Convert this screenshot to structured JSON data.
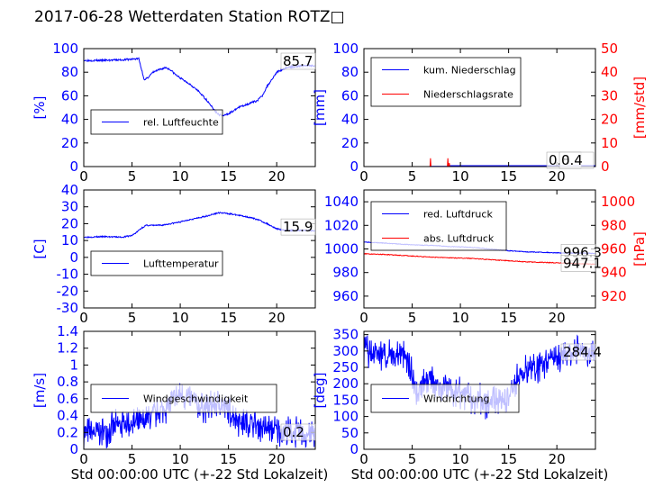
{
  "page": {
    "title": "2017-06-28 Wetterdaten Station ROTZ□"
  },
  "colors": {
    "primary": "#0000ff",
    "secondary": "#ff0000",
    "axis": "#000000",
    "background": "#ffffff"
  },
  "chart_data": [
    {
      "type": "line",
      "id": "humidity",
      "xlabel": "",
      "ylabel": "[%]",
      "ylabel_right": "",
      "xlim": [
        0,
        24
      ],
      "xticks": [
        0,
        5,
        10,
        15,
        20
      ],
      "ylim": [
        0,
        100
      ],
      "yticks": [
        0,
        20,
        40,
        60,
        80,
        100
      ],
      "legend_position": "lower-left",
      "value_labels": [
        "85.7"
      ],
      "series": [
        {
          "name": "rel. Luftfeuchte",
          "color": "#0000ff",
          "axis": "left",
          "noise": 0.8,
          "x": [
            0,
            2,
            4,
            5,
            5.7,
            6.0,
            6.3,
            6.7,
            7.2,
            7.8,
            8.5,
            9.0,
            9.5,
            10.2,
            11,
            12,
            13,
            13.5,
            14,
            14.5,
            15,
            15.5,
            16,
            17,
            18,
            18.5,
            19,
            19.5,
            20,
            21,
            22,
            23,
            24
          ],
          "y": [
            90,
            90,
            90.5,
            91,
            91.5,
            82,
            73,
            76,
            80,
            82,
            84,
            82,
            78,
            74,
            70,
            63,
            54,
            48,
            44,
            43,
            45,
            47,
            50,
            53,
            56,
            60,
            68,
            74,
            80,
            84,
            85,
            85.5,
            85.7
          ]
        }
      ]
    },
    {
      "type": "line",
      "id": "precipitation",
      "xlabel": "",
      "ylabel": "[mm]",
      "ylabel_right": "[mm/std]",
      "xlim": [
        0,
        24
      ],
      "xticks": [
        0,
        5,
        10,
        15,
        20
      ],
      "ylim": [
        0,
        100
      ],
      "yticks": [
        0,
        20,
        40,
        60,
        80,
        100
      ],
      "ylim_right": [
        0,
        50
      ],
      "yticks_right": [
        0,
        10,
        20,
        30,
        40,
        50
      ],
      "legend_position": "upper-left",
      "value_labels": [
        "0.8",
        "0.4"
      ],
      "series": [
        {
          "name": "kum. Niederschlag",
          "color": "#0000ff",
          "axis": "left",
          "x": [
            0,
            6.9,
            7.0,
            8.7,
            8.8,
            24
          ],
          "y": [
            0,
            0,
            0.2,
            0.2,
            0.8,
            0.8
          ]
        },
        {
          "name": "Niederschlagsrate",
          "color": "#ff0000",
          "axis": "right",
          "x": [
            0,
            6.85,
            6.9,
            6.95,
            7.1,
            8.65,
            8.7,
            8.75,
            8.85,
            8.9,
            24
          ],
          "y": [
            0,
            0,
            3.5,
            0,
            0,
            0,
            3.5,
            0,
            1.5,
            0,
            0
          ]
        }
      ]
    },
    {
      "type": "line",
      "id": "temperature",
      "xlabel": "",
      "ylabel": "[C]",
      "ylabel_right": "",
      "xlim": [
        0,
        24
      ],
      "xticks": [
        0,
        5,
        10,
        15,
        20
      ],
      "ylim": [
        -30,
        40
      ],
      "yticks": [
        -30,
        -20,
        -10,
        0,
        10,
        20,
        30,
        40
      ],
      "legend_position": "lower-left",
      "value_labels": [
        "15.9"
      ],
      "series": [
        {
          "name": "Lufttemperatur",
          "color": "#0000ff",
          "axis": "left",
          "noise": 0.4,
          "x": [
            0,
            2,
            4,
            5,
            5.5,
            6,
            6.5,
            8,
            9,
            10,
            11,
            12,
            13,
            14,
            15,
            16,
            17,
            18,
            19,
            20,
            21,
            22,
            24
          ],
          "y": [
            12,
            12.3,
            12,
            13,
            15,
            17.5,
            19,
            19,
            20,
            21,
            22.5,
            23.5,
            25,
            26.5,
            26,
            25,
            24,
            22.5,
            20,
            17,
            16,
            16,
            15.9
          ]
        }
      ]
    },
    {
      "type": "line",
      "id": "pressure",
      "xlabel": "",
      "ylabel": "",
      "ylabel_right": "[hPa]",
      "xlim": [
        0,
        24
      ],
      "xticks": [
        0,
        5,
        10,
        15,
        20
      ],
      "ylim": [
        950,
        1050
      ],
      "yticks": [
        960,
        980,
        1000,
        1020,
        1040
      ],
      "ylim_right": [
        910,
        1010
      ],
      "yticks_right": [
        920,
        940,
        960,
        980,
        1000
      ],
      "legend_position": "lower-left",
      "value_labels": [
        "996.3",
        "947.1"
      ],
      "series": [
        {
          "name": "red. Luftdruck",
          "color": "#0000ff",
          "axis": "left",
          "noise": 0.3,
          "x": [
            0,
            3,
            5,
            7,
            9,
            11,
            13,
            15,
            17,
            19,
            21,
            22,
            24
          ],
          "y": [
            1006,
            1004.5,
            1003.5,
            1003,
            1002,
            1001.5,
            1000,
            998.5,
            997.5,
            997,
            996.5,
            996.5,
            996.3
          ]
        },
        {
          "name": "abs. Luftdruck",
          "color": "#ff0000",
          "axis": "right",
          "noise": 0.3,
          "x": [
            0,
            3,
            5,
            7,
            9,
            11,
            13,
            15,
            17,
            19,
            21,
            22,
            24
          ],
          "y": [
            956,
            955,
            954,
            953,
            952.5,
            952,
            951,
            950,
            949,
            948.5,
            948,
            947.5,
            947.1
          ]
        }
      ]
    },
    {
      "type": "line",
      "id": "windspeed",
      "xlabel": "Std 00:00:00 UTC (+-22 Std Lokalzeit)",
      "ylabel": "[m/s]",
      "ylabel_right": "",
      "xlim": [
        0,
        24
      ],
      "xticks": [
        0,
        5,
        10,
        15,
        20
      ],
      "ylim": [
        0,
        1.4
      ],
      "yticks": [
        0,
        0.2,
        0.4,
        0.6,
        0.8,
        1.0,
        1.2,
        1.4
      ],
      "legend_position": "lower-left",
      "value_labels": [
        "0.2"
      ],
      "series": [
        {
          "name": "Windgeschwindigkeit",
          "color": "#0000ff",
          "axis": "left",
          "noise": 0.22,
          "step": 0.04,
          "clip": [
            0,
            1.4
          ],
          "seed": 7,
          "x": [
            0,
            2,
            4,
            6,
            7,
            8,
            9,
            10,
            11,
            12,
            13,
            14,
            15,
            16,
            17,
            18,
            19,
            20,
            21,
            22,
            23,
            24
          ],
          "y": [
            0.2,
            0.2,
            0.3,
            0.3,
            0.4,
            0.45,
            0.55,
            0.65,
            0.6,
            0.5,
            0.5,
            0.55,
            0.45,
            0.35,
            0.3,
            0.28,
            0.25,
            0.22,
            0.2,
            0.2,
            0.18,
            0.2
          ]
        }
      ]
    },
    {
      "type": "line",
      "id": "winddirection",
      "xlabel": "Std 00:00:00 UTC (+-22 Std Lokalzeit)",
      "ylabel": "[deg]",
      "ylabel_right": "",
      "xlim": [
        0,
        24
      ],
      "xticks": [
        0,
        5,
        10,
        15,
        20
      ],
      "ylim": [
        0,
        360
      ],
      "yticks": [
        0,
        50,
        100,
        150,
        200,
        250,
        300,
        350
      ],
      "legend_position": "lower-left",
      "value_labels": [
        "284.4"
      ],
      "series": [
        {
          "name": "Windrichtung",
          "color": "#0000ff",
          "axis": "left",
          "noise": 55,
          "step": 0.04,
          "clip": [
            0,
            360
          ],
          "seed": 13,
          "x": [
            0,
            2,
            4,
            4.5,
            5.5,
            6,
            7,
            8,
            9,
            10,
            11,
            12,
            13,
            14,
            15,
            15.5,
            16,
            17,
            18,
            19,
            20,
            21,
            22,
            23,
            24
          ],
          "y": [
            300,
            290,
            290,
            280,
            160,
            200,
            220,
            190,
            180,
            170,
            160,
            150,
            140,
            145,
            150,
            190,
            230,
            240,
            250,
            265,
            280,
            290,
            300,
            300,
            280
          ]
        }
      ]
    }
  ]
}
